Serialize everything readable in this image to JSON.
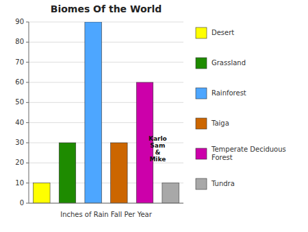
{
  "chart_data": {
    "type": "bar",
    "title": "Biomes Of the World",
    "categories": [
      "Desert",
      "Grassland",
      "Rainforest",
      "Taiga",
      "Temperate Deciduous\nForest",
      "Tundra"
    ],
    "values": [
      10,
      30,
      90,
      30,
      60,
      10
    ],
    "colors": [
      "#FFFF00",
      "#1E8B00",
      "#4DA6FF",
      "#CC6600",
      "#CC00AA",
      "#A8A8A8"
    ],
    "x_label": "Inches of Rain Fall Per Year",
    "annotation": "Karlo\nSam\n&\nMike",
    "ylim": [
      0,
      90
    ],
    "yticks": [
      0,
      10,
      20,
      30,
      40,
      50,
      60,
      70,
      80,
      90
    ],
    "grid": true,
    "legend": "right",
    "tick_labels": "y"
  }
}
